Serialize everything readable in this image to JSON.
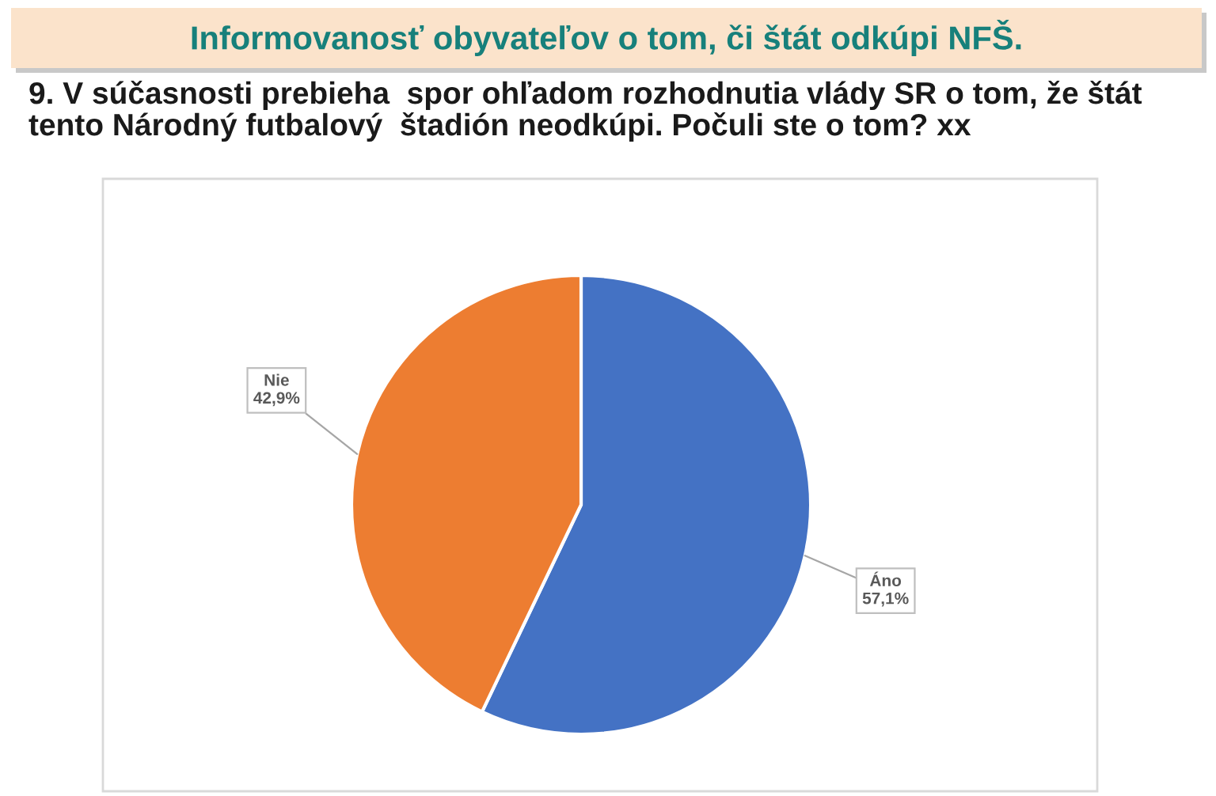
{
  "chart_data": {
    "type": "pie",
    "title": "Informovanosť obyvateľov o tom, či štát odkúpi NFŠ.",
    "subtitle": "9. V súčasnosti prebieha  spor ohľadom rozhodnutia vlády SR o tom, že štát\ntento Národný futbalový  štadión neodkúpi. Počuli ste o tom? xx",
    "categories": [
      "Áno",
      "Nie"
    ],
    "values": [
      57.1,
      42.9
    ],
    "colors": [
      "#4472c4",
      "#ed7d31"
    ],
    "value_labels": [
      "57,1%",
      "42,9%"
    ]
  }
}
